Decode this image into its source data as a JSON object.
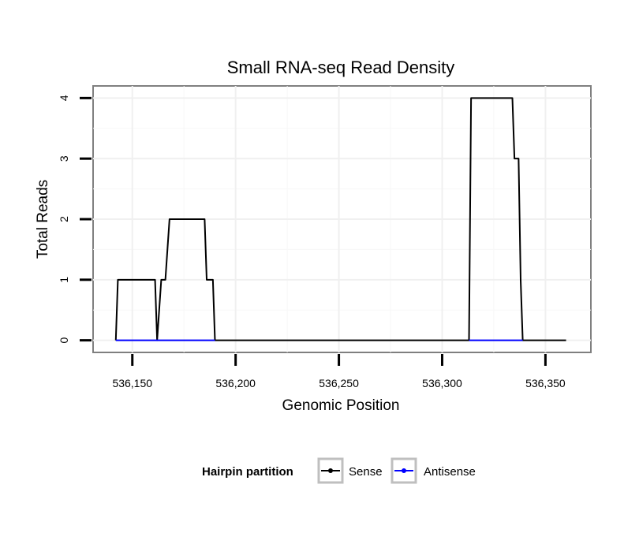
{
  "chart_data": {
    "type": "line",
    "title": "Small RNA-seq Read Density",
    "xlabel": "Genomic Position",
    "ylabel": "Total Reads",
    "xlim": [
      536131,
      536372
    ],
    "ylim": [
      -0.2,
      4.2
    ],
    "xticks": [
      536150,
      536200,
      536250,
      536300,
      536350
    ],
    "xtick_labels": [
      "536,150",
      "536,200",
      "536,250",
      "536,300",
      "536,350"
    ],
    "yticks": [
      0,
      1,
      2,
      3,
      4
    ],
    "ytick_labels": [
      "0",
      "1",
      "2",
      "3",
      "4"
    ],
    "grid": true,
    "legend": {
      "title": "Hairpin partition",
      "position": "bottom",
      "entries": [
        "Sense",
        "Antisense"
      ]
    },
    "series": [
      {
        "name": "Sense",
        "color": "#000000",
        "x": [
          536142,
          536143,
          536161,
          536162,
          536164,
          536166,
          536168,
          536185,
          536186,
          536189,
          536190,
          536313,
          536314,
          536334,
          536335,
          536337,
          536338,
          536339,
          536360
        ],
        "y": [
          0,
          1,
          1,
          0,
          1,
          1,
          2,
          2,
          1,
          1,
          0,
          0,
          4,
          4,
          3,
          3,
          1,
          0,
          0
        ]
      },
      {
        "name": "Antisense",
        "color": "#0000ff",
        "x": [
          536142,
          536190,
          536313,
          536339
        ],
        "y": [
          0,
          0,
          0,
          0
        ],
        "segments": [
          [
            0,
            1
          ],
          [
            2,
            3
          ]
        ]
      }
    ]
  }
}
